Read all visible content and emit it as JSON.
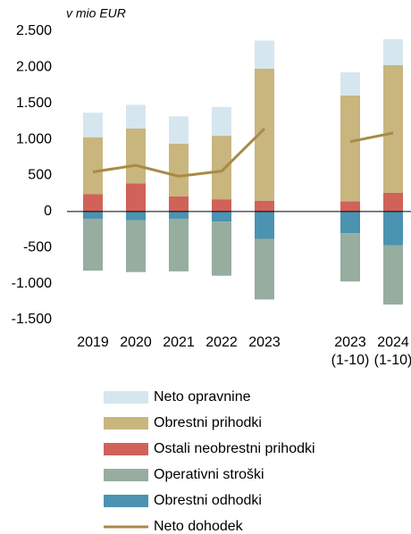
{
  "chart_data": {
    "type": "bar",
    "unit_label": "v mio EUR",
    "categories": [
      "2019",
      "2020",
      "2021",
      "2022",
      "2023",
      null,
      "2023\n(1-10)",
      "2024\n(1-10)"
    ],
    "series": [
      {
        "name": "Neto opravnine",
        "color": "#d6e6ef",
        "values": [
          340,
          330,
          380,
          400,
          390,
          null,
          320,
          360
        ]
      },
      {
        "name": "Obrestni prihodki",
        "color": "#c9b57e",
        "values": [
          790,
          760,
          730,
          880,
          1830,
          null,
          1470,
          1770
        ]
      },
      {
        "name": "Ostali neobrestni prihodki",
        "color": "#d0625a",
        "values": [
          240,
          390,
          210,
          170,
          150,
          null,
          140,
          260
        ]
      },
      {
        "name": "Operativni stroški",
        "color": "#96ada0",
        "values": [
          -720,
          -720,
          -730,
          -750,
          -840,
          null,
          -670,
          -820
        ]
      },
      {
        "name": "Obrestni odhodki",
        "color": "#4b93b1",
        "values": [
          -100,
          -120,
          -100,
          -140,
          -380,
          null,
          -300,
          -470
        ]
      },
      {
        "name": "Neto dohodek",
        "type": "line",
        "color": "#a88b45",
        "values": [
          550,
          640,
          490,
          560,
          1150,
          null,
          970,
          1090
        ]
      }
    ],
    "ylim": [
      -1500,
      2500
    ],
    "yticks": [
      {
        "value": -1500,
        "label": "-1.500"
      },
      {
        "value": -1000,
        "label": "-1.000"
      },
      -500,
      0,
      500,
      {
        "value": 1000,
        "label": "1.000"
      },
      {
        "value": 1500,
        "label": "1.500"
      },
      {
        "value": 2000,
        "label": "2.000"
      },
      {
        "value": 2500,
        "label": "2.500"
      }
    ]
  }
}
